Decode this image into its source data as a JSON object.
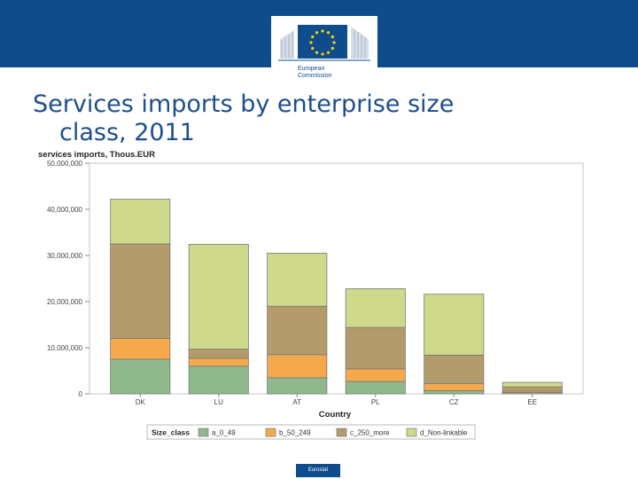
{
  "header": {
    "logo": {
      "icon": "european-commission-logo",
      "line1": "European",
      "line2": "Commission"
    },
    "colors": {
      "band": "#0f4c8c"
    }
  },
  "slide": {
    "title_line1": "Services imports by enterprise size",
    "title_line2": "class, 2011"
  },
  "footer": {
    "tag": "Eurostat"
  },
  "chart_data": {
    "type": "bar",
    "stacked": true,
    "title": "services imports, Thous.EUR",
    "xlabel": "Country",
    "ylabel": "",
    "ylim": [
      0,
      50000000
    ],
    "yticks": [
      0,
      10000000,
      20000000,
      30000000,
      40000000,
      50000000
    ],
    "ytick_labels": [
      "0",
      "10,000,000",
      "20,000,000",
      "30,000,000",
      "40,000,000",
      "50,000,000"
    ],
    "grid": false,
    "categories": [
      "DK",
      "LU",
      "AT",
      "PL",
      "CZ",
      "EE"
    ],
    "legend_title": "Size_class",
    "legend_position": "bottom",
    "series": [
      {
        "name": "a_0_49",
        "color": "#8fb98c",
        "values": [
          7500000,
          6000000,
          3500000,
          2700000,
          700000,
          300000
        ]
      },
      {
        "name": "b_50_249",
        "color": "#f5a94c",
        "values": [
          4500000,
          1700000,
          5000000,
          2700000,
          1500000,
          300000
        ]
      },
      {
        "name": "c_250_more",
        "color": "#b49b6b",
        "values": [
          20500000,
          2000000,
          10500000,
          9000000,
          6200000,
          900000
        ]
      },
      {
        "name": "d_Non-linkable",
        "color": "#cfd98b",
        "values": [
          9700000,
          22700000,
          11500000,
          8400000,
          13200000,
          1000000
        ]
      }
    ]
  }
}
